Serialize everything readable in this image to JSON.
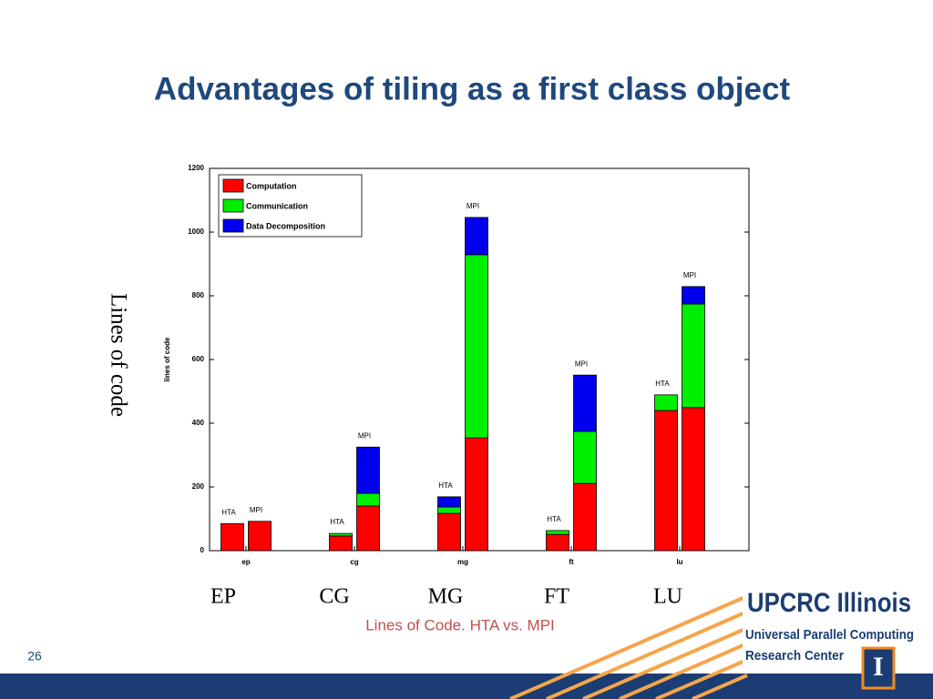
{
  "slide": {
    "title": "Advantages of tiling as a first class object",
    "y_label": "Lines of code",
    "group_labels": [
      "EP",
      "CG",
      "MG",
      "FT",
      "LU"
    ],
    "caption": "Lines of Code. HTA vs. MPI",
    "page_number": "26"
  },
  "logo": {
    "name": "UPCRC Illinois",
    "line1": "Universal Parallel Computing",
    "line2": "Research Center",
    "badge": "I"
  },
  "chart_data": {
    "type": "bar",
    "stacked": true,
    "groups": [
      "ep",
      "cg",
      "mg",
      "ft",
      "lu"
    ],
    "categories": [
      "HTA",
      "MPI",
      "HTA",
      "MPI",
      "HTA",
      "MPI",
      "HTA",
      "MPI",
      "HTA",
      "MPI"
    ],
    "series": [
      {
        "name": "Computation",
        "color": "#ff0000",
        "values": [
          85,
          92,
          46,
          140,
          117,
          354,
          51,
          211,
          440,
          449
        ]
      },
      {
        "name": "Communication",
        "color": "#00ee00",
        "values": [
          0,
          0,
          8,
          40,
          20,
          575,
          12,
          163,
          49,
          325
        ]
      },
      {
        "name": "Data Decomposition",
        "color": "#0000ee",
        "values": [
          0,
          0,
          0,
          145,
          32,
          117,
          0,
          177,
          0,
          55
        ]
      }
    ],
    "ylabel": "lines of code",
    "ylim": [
      0,
      1200
    ],
    "yticks": [
      0,
      200,
      400,
      600,
      800,
      1000,
      1200
    ],
    "legend": "upper left"
  }
}
